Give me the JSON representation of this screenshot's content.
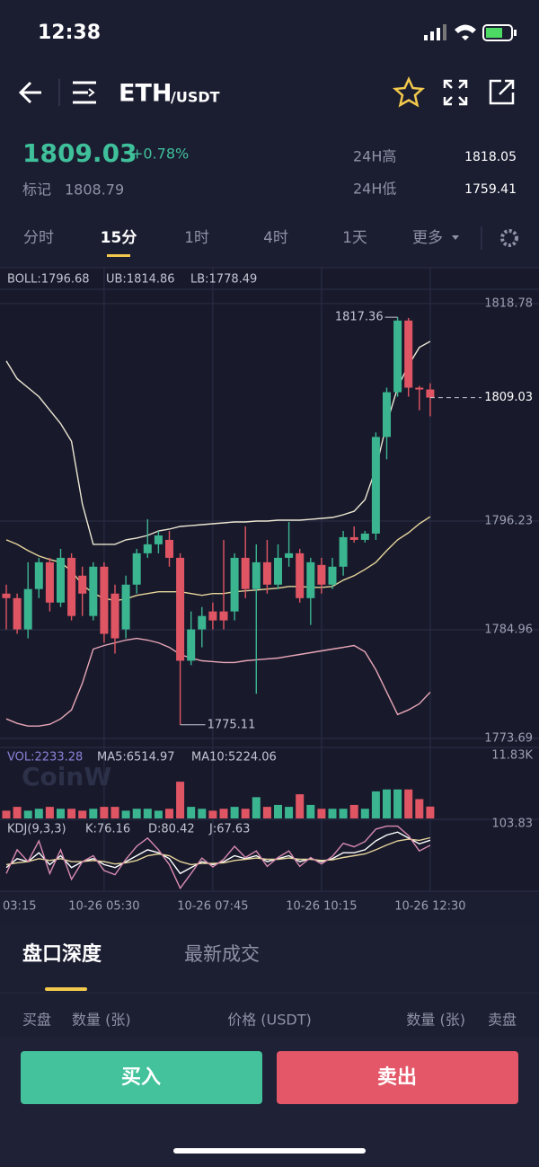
{
  "status_bar": {
    "time": "12:38"
  },
  "header": {
    "base": "ETH",
    "quote": "/USDT"
  },
  "ticker": {
    "last": "1809.03",
    "change": "+0.78%",
    "mark_label": "标记",
    "mark": "1808.79",
    "high_label": "24H高",
    "high": "1818.05",
    "low_label": "24H低",
    "low": "1759.41"
  },
  "intervals": {
    "items": [
      "分时",
      "15分",
      "1时",
      "4时",
      "1天",
      "更多"
    ]
  },
  "watermark": "CoinW",
  "chart_data": [
    {
      "type": "candlestick",
      "categories": [
        "03:15",
        null,
        null,
        null,
        null,
        null,
        null,
        null,
        null,
        "10-26 05:30",
        null,
        null,
        null,
        null,
        null,
        null,
        null,
        null,
        null,
        "10-26 07:45",
        null,
        null,
        null,
        null,
        null,
        null,
        null,
        null,
        null,
        "10-26 10:15",
        null,
        null,
        null,
        null,
        null,
        null,
        null,
        null,
        null,
        "10-26 12:30"
      ],
      "open": [
        1788.71,
        1788.24,
        1785.0,
        1789.18,
        1791.96,
        1787.78,
        1792.42,
        1790.57,
        1786.39,
        1791.5,
        1788.71,
        1785.0,
        1789.64,
        1792.89,
        1793.82,
        1794.28,
        1792.42,
        1781.75,
        1785.0,
        1786.86,
        1786.86,
        1786.86,
        1792.42,
        1789.18,
        1791.96,
        1789.64,
        1792.42,
        1792.89,
        1788.24,
        1791.68,
        1789.64,
        1791.5,
        1794.56,
        1794.28,
        1794.93,
        1804.95,
        1809.59,
        1817.02,
        1810.06,
        1809.87
      ],
      "high": [
        1789.64,
        1788.71,
        1791.96,
        1792.42,
        1792.42,
        1793.35,
        1792.89,
        1791.5,
        1791.96,
        1791.96,
        1789.64,
        1790.57,
        1793.35,
        1796.42,
        1795.21,
        1795.21,
        1792.89,
        1786.86,
        1787.32,
        1787.78,
        1794.28,
        1792.89,
        1795.67,
        1793.82,
        1794.28,
        1793.82,
        1796.14,
        1793.35,
        1792.42,
        1792.42,
        1792.42,
        1795.21,
        1795.67,
        1795.21,
        1805.42,
        1810.06,
        1817.36,
        1817.29,
        1810.24,
        1810.52
      ],
      "low": [
        1785.0,
        1784.54,
        1784.07,
        1788.24,
        1786.86,
        1787.32,
        1785.93,
        1786.39,
        1785.93,
        1783.61,
        1782.49,
        1784.07,
        1788.71,
        1792.42,
        1792.89,
        1791.5,
        1775.11,
        1781.29,
        1783.14,
        1785.0,
        1785.0,
        1785.93,
        1788.24,
        1778.32,
        1788.71,
        1789.18,
        1791.5,
        1787.78,
        1785.46,
        1788.71,
        1789.18,
        1790.57,
        1794.0,
        1794.0,
        1794.28,
        1802.63,
        1809.13,
        1809.13,
        1807.72,
        1807.09
      ],
      "close": [
        1788.24,
        1785.0,
        1789.18,
        1791.96,
        1787.78,
        1792.42,
        1786.39,
        1788.71,
        1791.5,
        1784.54,
        1784.07,
        1789.64,
        1792.89,
        1793.82,
        1794.74,
        1792.42,
        1781.75,
        1785.0,
        1786.39,
        1785.93,
        1785.93,
        1792.42,
        1789.18,
        1791.96,
        1789.64,
        1792.42,
        1792.89,
        1788.24,
        1791.96,
        1789.64,
        1791.5,
        1794.56,
        1794.28,
        1794.93,
        1804.95,
        1809.59,
        1817.02,
        1810.06,
        1809.87,
        1809.03
      ],
      "up_color": "#3bb590",
      "down_color": "#e05563",
      "series": [
        {
          "name": "BOLL:1796.68",
          "color": "#e6d49a",
          "values": [
            1794.28,
            1793.82,
            1793.17,
            1792.61,
            1792.24,
            1791.96,
            1791.03,
            1789.64,
            1788.71,
            1788.24,
            1787.97,
            1788.16,
            1788.53,
            1788.71,
            1788.9,
            1788.9,
            1788.9,
            1788.71,
            1788.53,
            1788.71,
            1788.71,
            1788.9,
            1788.99,
            1789.08,
            1789.18,
            1789.27,
            1789.45,
            1789.45,
            1789.36,
            1789.36,
            1789.45,
            1790.1,
            1790.57,
            1791.22,
            1791.96,
            1793.17,
            1794.28,
            1795.02,
            1795.95,
            1796.68
          ]
        },
        {
          "name": "UB:1814.86",
          "color": "#ece6d2",
          "values": [
            1812.84,
            1810.98,
            1810.06,
            1809.13,
            1807.72,
            1806.34,
            1804.49,
            1797.99,
            1793.82,
            1793.82,
            1793.82,
            1794.28,
            1794.47,
            1794.74,
            1795.21,
            1795.39,
            1795.67,
            1795.76,
            1795.86,
            1795.95,
            1796.04,
            1796.14,
            1796.14,
            1796.23,
            1796.23,
            1796.32,
            1796.32,
            1796.32,
            1796.41,
            1796.51,
            1796.6,
            1796.88,
            1797.25,
            1798.46,
            1801.7,
            1806.34,
            1810.06,
            1812.38,
            1814.23,
            1814.86
          ]
        },
        {
          "name": "LB:1778.49",
          "color": "#e8a6b6",
          "values": [
            1775.72,
            1775.26,
            1774.98,
            1774.98,
            1775.16,
            1775.72,
            1776.65,
            1779.43,
            1782.96,
            1783.33,
            1783.61,
            1783.89,
            1784.07,
            1783.89,
            1783.61,
            1783.14,
            1782.4,
            1782.03,
            1781.75,
            1781.66,
            1781.57,
            1781.57,
            1781.75,
            1781.85,
            1781.94,
            1782.03,
            1782.22,
            1782.4,
            1782.59,
            1782.77,
            1782.96,
            1783.14,
            1783.33,
            1782.68,
            1780.82,
            1778.5,
            1776.18,
            1776.65,
            1777.3,
            1778.49
          ]
        }
      ],
      "ylim": [
        1772.76,
        1820.26
      ],
      "yticks": [
        1773.69,
        1784.96,
        1796.23,
        1818.78
      ],
      "grid": true
    },
    {
      "type": "bar",
      "series": [
        {
          "name": "VOL:2233.28",
          "color": "#8d80d6",
          "values": [
            1460,
            2180,
            1460,
            1820,
            2180,
            1820,
            1820,
            1460,
            1820,
            2180,
            2180,
            1460,
            1820,
            1820,
            1460,
            1820,
            6920,
            2180,
            1820,
            1460,
            1820,
            2180,
            1820,
            4000,
            2180,
            2550,
            2180,
            4550,
            2550,
            1820,
            1820,
            1820,
            2550,
            1820,
            5100,
            5460,
            5460,
            5460,
            3640,
            2233.28
          ]
        }
      ],
      "annotations": [
        "MA5:6514.97",
        "MA10:5224.06"
      ],
      "ylim": [
        0,
        13200
      ],
      "yticks": [
        {
          "value": 11830,
          "label": "11.83K"
        }
      ]
    },
    {
      "type": "line",
      "title": "KDJ(9,3,3)",
      "series": [
        {
          "name": "K:76.16",
          "color": "#ffffff",
          "values": [
            30,
            45,
            40,
            55,
            35,
            50,
            30,
            40,
            45,
            35,
            30,
            40,
            50,
            60,
            55,
            45,
            20,
            30,
            40,
            35,
            40,
            50,
            45,
            50,
            40,
            45,
            50,
            40,
            45,
            40,
            45,
            55,
            55,
            60,
            75,
            85,
            90,
            80,
            70,
            76.16
          ]
        },
        {
          "name": "D:80.42",
          "color": "#e6d49a",
          "values": [
            35,
            38,
            40,
            45,
            42,
            45,
            40,
            40,
            42,
            40,
            36,
            38,
            42,
            50,
            53,
            50,
            40,
            35,
            37,
            37,
            38,
            42,
            44,
            46,
            44,
            44,
            46,
            44,
            44,
            42,
            43,
            47,
            50,
            53,
            60,
            68,
            75,
            78,
            76,
            80.42
          ]
        },
        {
          "name": "J:67.63",
          "color": "#d88ab0",
          "values": [
            20,
            60,
            40,
            75,
            20,
            60,
            10,
            40,
            50,
            25,
            18,
            44,
            66,
            80,
            60,
            35,
            -5,
            20,
            46,
            31,
            44,
            66,
            47,
            58,
            32,
            47,
            58,
            32,
            47,
            36,
            49,
            71,
            65,
            74,
            95,
            100,
            100,
            84,
            58,
            67.63
          ]
        }
      ],
      "ylim": [
        -10,
        110
      ],
      "yticks": [
        103.83
      ]
    }
  ],
  "orderbook": {
    "tabs": [
      "盘口深度",
      "最新成交"
    ],
    "columns": [
      "买盘",
      "数量 (张)",
      "价格 (USDT)",
      "数量 (张)",
      "卖盘"
    ]
  },
  "actions": {
    "buy": "买入",
    "sell": "卖出"
  }
}
